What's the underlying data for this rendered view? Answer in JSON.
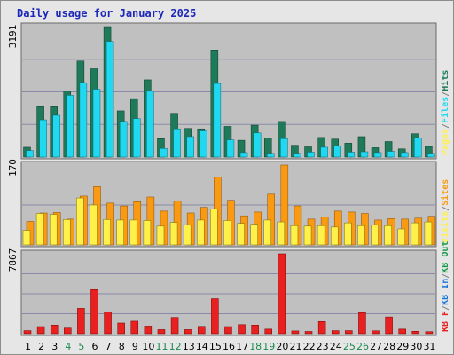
{
  "title": "Daily usage for January 2025",
  "colors": {
    "hits": "#1e7a58",
    "files": "#20d8f0",
    "pages": "#fff04a",
    "visits": "#fa9a12",
    "kbf": "#e82020",
    "kbin": "#1a78d8",
    "kbout": "#1a9a4a",
    "panel_bg": "#c0c0c0",
    "grid": "#8a8aa8",
    "weekend": "#1a8a4a",
    "weekday": "#000000"
  },
  "chart_data": [
    {
      "type": "bar",
      "panel": "hits-files-pages",
      "ymax_label": "3191",
      "ylim": [
        0,
        3191
      ],
      "legend": [
        "Pages",
        "/",
        "Files",
        "/",
        "Hits"
      ],
      "categories": [
        "1",
        "2",
        "3",
        "4",
        "5",
        "6",
        "7",
        "8",
        "9",
        "10",
        "11",
        "12",
        "13",
        "14",
        "15",
        "16",
        "17",
        "18",
        "19",
        "20",
        "21",
        "22",
        "23",
        "24",
        "25",
        "26",
        "27",
        "28",
        "29",
        "30",
        "31"
      ],
      "series": [
        {
          "name": "Hits",
          "values": [
            240,
            1230,
            1230,
            1610,
            2350,
            2160,
            3191,
            1130,
            1430,
            1890,
            450,
            1070,
            700,
            690,
            2620,
            750,
            410,
            780,
            470,
            870,
            290,
            250,
            480,
            440,
            340,
            500,
            230,
            380,
            200,
            570,
            260
          ]
        },
        {
          "name": "Files",
          "values": [
            160,
            910,
            1020,
            1510,
            1820,
            1660,
            2830,
            870,
            940,
            1610,
            210,
            690,
            500,
            640,
            1800,
            420,
            110,
            590,
            90,
            450,
            90,
            120,
            240,
            270,
            120,
            130,
            110,
            140,
            110,
            470,
            90
          ]
        },
        {
          "name": "Pages",
          "values": [
            0,
            0,
            0,
            0,
            0,
            0,
            0,
            0,
            0,
            0,
            0,
            0,
            0,
            0,
            0,
            0,
            0,
            0,
            0,
            0,
            0,
            0,
            0,
            0,
            0,
            0,
            0,
            0,
            0,
            0,
            0
          ]
        }
      ]
    },
    {
      "type": "bar",
      "panel": "visits-sites",
      "ymax_label": "170",
      "ylim": [
        0,
        170
      ],
      "legend": [
        "Visits",
        "/",
        "Sites"
      ],
      "categories": [
        "1",
        "2",
        "3",
        "4",
        "5",
        "6",
        "7",
        "8",
        "9",
        "10",
        "11",
        "12",
        "13",
        "14",
        "15",
        "16",
        "17",
        "18",
        "19",
        "20",
        "21",
        "22",
        "23",
        "24",
        "25",
        "26",
        "27",
        "28",
        "29",
        "30",
        "31"
      ],
      "series": [
        {
          "name": "Sites",
          "values": [
            31,
            67,
            65,
            54,
            100,
            85,
            54,
            53,
            53,
            52,
            40,
            48,
            43,
            53,
            77,
            52,
            46,
            44,
            53,
            49,
            41,
            40,
            41,
            38,
            47,
            41,
            42,
            41,
            34,
            47,
            49
          ]
        },
        {
          "name": "Visits",
          "values": [
            50,
            68,
            69,
            55,
            104,
            124,
            89,
            83,
            92,
            102,
            72,
            93,
            68,
            80,
            144,
            95,
            62,
            70,
            108,
            170,
            83,
            55,
            59,
            72,
            70,
            67,
            53,
            56,
            55,
            57,
            61
          ]
        }
      ]
    },
    {
      "type": "bar",
      "panel": "kb",
      "ymax_label": "7867",
      "ylim": [
        0,
        7867
      ],
      "legend": [
        "KB F",
        "/",
        "KB In",
        "/",
        "KB Out"
      ],
      "categories": [
        "1",
        "2",
        "3",
        "4",
        "5",
        "6",
        "7",
        "8",
        "9",
        "10",
        "11",
        "12",
        "13",
        "14",
        "15",
        "16",
        "17",
        "18",
        "19",
        "20",
        "21",
        "22",
        "23",
        "24",
        "25",
        "26",
        "27",
        "28",
        "29",
        "30",
        "31"
      ],
      "series": [
        {
          "name": "KB F",
          "values": [
            300,
            700,
            850,
            550,
            2500,
            4350,
            2150,
            1050,
            1230,
            750,
            400,
            1600,
            400,
            720,
            3450,
            700,
            890,
            850,
            450,
            7867,
            270,
            220,
            1200,
            300,
            300,
            2070,
            280,
            1650,
            450,
            240,
            200
          ]
        },
        {
          "name": "KB In",
          "values": [
            0,
            0,
            0,
            0,
            0,
            0,
            0,
            0,
            0,
            0,
            0,
            0,
            0,
            0,
            0,
            0,
            0,
            0,
            0,
            0,
            0,
            0,
            0,
            0,
            0,
            0,
            0,
            0,
            0,
            0,
            0
          ]
        },
        {
          "name": "KB Out",
          "values": [
            0,
            0,
            0,
            0,
            0,
            0,
            0,
            0,
            0,
            0,
            0,
            0,
            0,
            0,
            0,
            0,
            0,
            0,
            0,
            0,
            0,
            0,
            0,
            0,
            0,
            0,
            0,
            0,
            0,
            0,
            0
          ]
        }
      ]
    }
  ],
  "weekend_days": [
    "4",
    "5",
    "11",
    "12",
    "18",
    "19",
    "25",
    "26"
  ]
}
